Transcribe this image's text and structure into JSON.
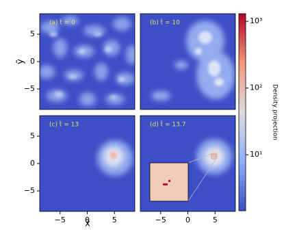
{
  "chart_data": {
    "type": "heatmap",
    "panels": [
      {
        "title": "(a) t̃ = 0"
      },
      {
        "title": "(b) t̃ = 10"
      },
      {
        "title": "(c) t̃ = 13"
      },
      {
        "title": "(d) t̃ = 13.7"
      }
    ],
    "xlabel": "x̃",
    "ylabel": "ỹ",
    "xlim": [
      -8.75,
      8.75
    ],
    "xticks": [
      {
        "value": -5,
        "label": "−5"
      },
      0,
      5
    ],
    "ylim": [
      -8.75,
      8.75
    ],
    "yticks": [
      {
        "value": -5,
        "label": "−5"
      },
      0,
      5
    ],
    "colorbar": {
      "label": "Density projection",
      "scale": "log",
      "lim": [
        1.45,
        1300
      ],
      "ticks": [
        {
          "value": 10,
          "label": "10¹"
        },
        {
          "value": 100,
          "label": "10²"
        },
        {
          "value": 1000,
          "label": "10³"
        }
      ],
      "colormap": [
        "#3b4cc0",
        "#8db0fe",
        "#dddcdc",
        "#f4987a",
        "#b40426"
      ]
    }
  }
}
